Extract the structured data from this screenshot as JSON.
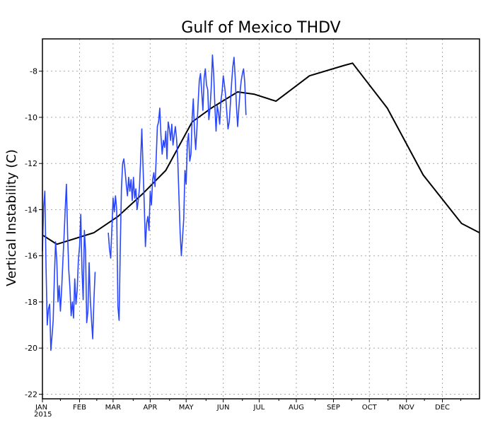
{
  "chart_data": {
    "type": "line",
    "title": "Gulf of Mexico THDV",
    "ylabel": "Vertical Instability (C)",
    "xlabel": "",
    "year_label": "2015",
    "ylim": [
      -22.2,
      -6.6
    ],
    "xlim": [
      0,
      365
    ],
    "yticks": [
      -22,
      -20,
      -18,
      -16,
      -14,
      -12,
      -10,
      -8
    ],
    "x_ticks": [
      {
        "label": "JAN",
        "day": 0
      },
      {
        "label": "FEB",
        "day": 31
      },
      {
        "label": "MAR",
        "day": 59
      },
      {
        "label": "APR",
        "day": 90
      },
      {
        "label": "MAY",
        "day": 120
      },
      {
        "label": "JUN",
        "day": 151
      },
      {
        "label": "JUL",
        "day": 181
      },
      {
        "label": "AUG",
        "day": 212
      },
      {
        "label": "SEP",
        "day": 243
      },
      {
        "label": "OCT",
        "day": 273
      },
      {
        "label": "NOV",
        "day": 304
      },
      {
        "label": "DEC",
        "day": 334
      }
    ],
    "grid": true,
    "series": [
      {
        "color": "#000000",
        "points": [
          [
            0,
            -15.1
          ],
          [
            12,
            -15.5
          ],
          [
            43,
            -15.0
          ],
          [
            63,
            -14.3
          ],
          [
            84,
            -13.3
          ],
          [
            103,
            -12.3
          ],
          [
            125,
            -10.2
          ],
          [
            141,
            -9.6
          ],
          [
            163,
            -8.9
          ],
          [
            177,
            -9.0
          ],
          [
            195,
            -9.3
          ],
          [
            223,
            -8.2
          ],
          [
            252,
            -7.75
          ],
          [
            259,
            -7.65
          ],
          [
            288,
            -9.6
          ],
          [
            318,
            -12.5
          ],
          [
            350,
            -14.6
          ],
          [
            365,
            -15.0
          ]
        ]
      },
      {
        "color": "#2a46ff",
        "segments": [
          [
            [
              0,
              -15.8
            ],
            [
              1,
              -13.9
            ],
            [
              2,
              -13.2
            ],
            [
              3,
              -16.5
            ],
            [
              4,
              -19.0
            ],
            [
              5,
              -18.3
            ],
            [
              6,
              -18.1
            ],
            [
              7,
              -20.1
            ],
            [
              8,
              -19.5
            ],
            [
              9,
              -18.8
            ],
            [
              10,
              -16.9
            ],
            [
              11,
              -15.4
            ],
            [
              12,
              -16.2
            ],
            [
              13,
              -18.0
            ],
            [
              14,
              -17.3
            ],
            [
              15,
              -18.4
            ],
            [
              16,
              -17.5
            ],
            [
              17,
              -16.3
            ],
            [
              18,
              -15.2
            ],
            [
              19,
              -14.0
            ],
            [
              20,
              -12.9
            ],
            [
              21,
              -15.1
            ],
            [
              22,
              -16.6
            ],
            [
              23,
              -17.4
            ],
            [
              24,
              -18.6
            ],
            [
              25,
              -18.0
            ],
            [
              26,
              -18.7
            ],
            [
              27,
              -17.0
            ],
            [
              28,
              -18.1
            ],
            [
              29,
              -17.5
            ],
            [
              30,
              -16.2
            ],
            [
              31,
              -15.6
            ],
            [
              32,
              -14.2
            ],
            [
              33,
              -16.6
            ],
            [
              34,
              -17.9
            ],
            [
              35,
              -14.9
            ],
            [
              36,
              -15.8
            ],
            [
              37,
              -18.9
            ],
            [
              38,
              -18.4
            ],
            [
              39,
              -16.3
            ],
            [
              40,
              -17.9
            ],
            [
              41,
              -18.8
            ],
            [
              42,
              -19.6
            ],
            [
              43,
              -17.9
            ],
            [
              44,
              -16.7
            ]
          ],
          [
            [
              55,
              -15.0
            ],
            [
              56,
              -15.7
            ],
            [
              57,
              -16.1
            ],
            [
              58,
              -14.8
            ],
            [
              59,
              -13.5
            ],
            [
              60,
              -14.1
            ],
            [
              61,
              -13.4
            ],
            [
              62,
              -14.0
            ],
            [
              63,
              -18.2
            ],
            [
              64,
              -18.8
            ],
            [
              65,
              -15.6
            ],
            [
              66,
              -13.1
            ],
            [
              67,
              -12.0
            ],
            [
              68,
              -11.8
            ],
            [
              69,
              -12.3
            ],
            [
              70,
              -12.9
            ],
            [
              71,
              -13.4
            ],
            [
              72,
              -12.6
            ],
            [
              73,
              -13.2
            ],
            [
              74,
              -12.7
            ],
            [
              75,
              -13.6
            ],
            [
              76,
              -12.6
            ],
            [
              77,
              -13.5
            ],
            [
              78,
              -13.1
            ],
            [
              79,
              -14.0
            ],
            [
              80,
              -13.6
            ],
            [
              81,
              -13.1
            ],
            [
              82,
              -11.9
            ],
            [
              83,
              -10.5
            ],
            [
              84,
              -12.1
            ],
            [
              85,
              -13.7
            ],
            [
              86,
              -15.6
            ],
            [
              87,
              -14.6
            ],
            [
              88,
              -14.3
            ],
            [
              89,
              -14.9
            ],
            [
              90,
              -13.2
            ],
            [
              91,
              -13.8
            ],
            [
              92,
              -12.7
            ],
            [
              93,
              -12.4
            ],
            [
              94,
              -13.0
            ],
            [
              95,
              -11.8
            ],
            [
              96,
              -10.4
            ],
            [
              97,
              -10.2
            ],
            [
              98,
              -9.6
            ],
            [
              99,
              -10.8
            ],
            [
              100,
              -11.6
            ],
            [
              101,
              -11.0
            ],
            [
              102,
              -11.3
            ],
            [
              103,
              -10.6
            ],
            [
              104,
              -11.8
            ],
            [
              105,
              -10.2
            ],
            [
              106,
              -10.5
            ],
            [
              107,
              -11.0
            ],
            [
              108,
              -10.3
            ],
            [
              109,
              -11.2
            ],
            [
              110,
              -10.8
            ],
            [
              111,
              -10.4
            ],
            [
              112,
              -10.9
            ],
            [
              113,
              -11.8
            ],
            [
              114,
              -13.4
            ],
            [
              115,
              -15.0
            ],
            [
              116,
              -16.0
            ],
            [
              117,
              -15.2
            ],
            [
              118,
              -14.4
            ],
            [
              119,
              -12.3
            ],
            [
              120,
              -12.9
            ],
            [
              121,
              -11.1
            ],
            [
              122,
              -10.7
            ],
            [
              123,
              -11.9
            ],
            [
              124,
              -11.6
            ],
            [
              125,
              -10.1
            ],
            [
              126,
              -9.2
            ],
            [
              127,
              -10.6
            ],
            [
              128,
              -11.4
            ],
            [
              129,
              -10.5
            ],
            [
              130,
              -9.4
            ],
            [
              131,
              -8.4
            ],
            [
              132,
              -8.1
            ],
            [
              133,
              -8.9
            ],
            [
              134,
              -9.7
            ],
            [
              135,
              -8.3
            ],
            [
              136,
              -7.9
            ],
            [
              137,
              -8.6
            ],
            [
              138,
              -8.8
            ],
            [
              139,
              -10.1
            ],
            [
              140,
              -9.6
            ],
            [
              141,
              -8.7
            ],
            [
              142,
              -7.3
            ],
            [
              143,
              -8.1
            ],
            [
              144,
              -9.5
            ],
            [
              145,
              -10.6
            ],
            [
              146,
              -9.5
            ],
            [
              147,
              -9.8
            ],
            [
              148,
              -10.3
            ],
            [
              149,
              -9.3
            ],
            [
              150,
              -8.9
            ],
            [
              151,
              -8.2
            ],
            [
              152,
              -8.6
            ],
            [
              153,
              -9.1
            ],
            [
              154,
              -9.8
            ],
            [
              155,
              -10.5
            ],
            [
              156,
              -10.2
            ],
            [
              157,
              -9.4
            ],
            [
              158,
              -8.5
            ],
            [
              159,
              -7.8
            ],
            [
              160,
              -7.4
            ],
            [
              161,
              -8.3
            ],
            [
              162,
              -9.5
            ],
            [
              163,
              -10.4
            ],
            [
              164,
              -9.6
            ],
            [
              165,
              -8.9
            ],
            [
              166,
              -8.4
            ],
            [
              167,
              -8.1
            ],
            [
              168,
              -7.9
            ],
            [
              169,
              -8.5
            ],
            [
              170,
              -9.9
            ]
          ]
        ]
      }
    ]
  }
}
